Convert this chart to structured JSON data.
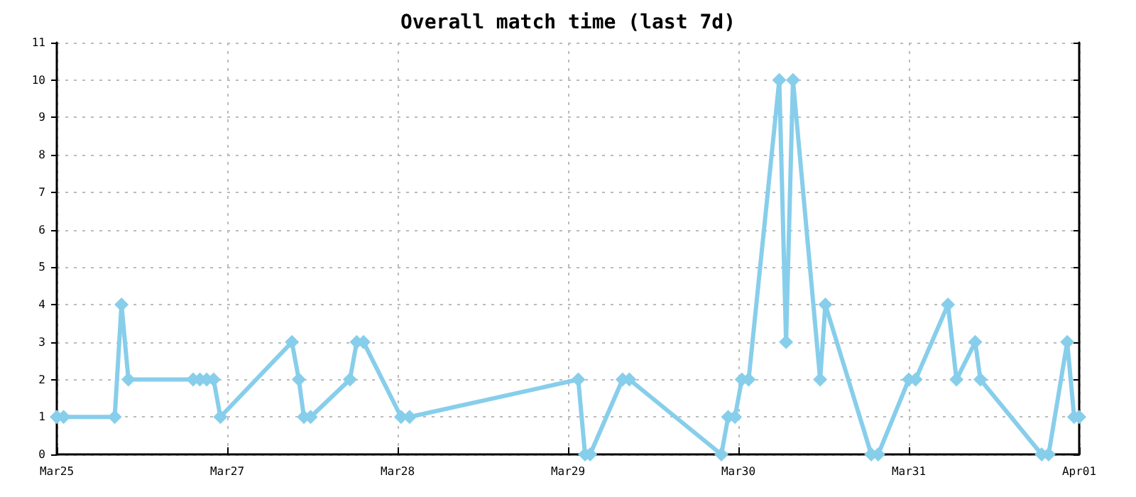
{
  "chart_data": {
    "type": "line",
    "title": "Overall match time (last 7d)",
    "x": [
      "--03-25T20:00",
      "--03-25T21:07",
      "--03-26T05:31",
      "--03-26T06:38",
      "--03-26T07:46",
      "--03-26T18:24",
      "--03-26T19:31",
      "--03-26T20:38",
      "--03-26T21:46",
      "--03-26T22:53",
      "--03-27T10:38",
      "--03-27T11:46",
      "--03-27T12:36",
      "--03-27T13:43",
      "--03-27T20:10",
      "--03-27T21:17",
      "--03-27T22:24",
      "--03-28T04:34",
      "--03-28T05:58",
      "--03-29T09:41",
      "--03-29T10:48",
      "--03-29T11:38",
      "--03-29T16:58",
      "--03-29T18:05",
      "--03-30T09:12",
      "--03-30T10:19",
      "--03-30T11:26",
      "--03-30T12:34",
      "--03-30T13:41",
      "--03-30T18:43",
      "--03-30T19:50",
      "--03-30T20:58",
      "--03-31T01:26",
      "--03-31T02:17",
      "--03-31T09:50",
      "--03-31T10:58",
      "--03-31T16:00",
      "--03-31T17:07",
      "--03-31T22:26",
      "--03-31T23:50",
      "--04-01T02:55",
      "--04-01T03:46",
      "--04-01T13:50",
      "--04-01T14:58",
      "--04-01T18:02",
      "--04-01T19:10",
      "--04-01T20:00"
    ],
    "series": [
      {
        "color": "#87ceeb",
        "values": [
          1,
          1,
          1,
          4,
          2,
          2,
          2,
          2,
          2,
          1,
          3,
          2,
          1,
          1,
          2,
          3,
          3,
          1,
          1,
          2,
          0,
          0,
          2,
          2,
          0,
          1,
          1,
          2,
          2,
          10,
          3,
          10,
          2,
          4,
          0,
          0,
          2,
          2,
          4,
          2,
          3,
          2,
          0,
          0,
          3,
          1,
          1
        ]
      }
    ],
    "xlim": [
      "--03-25T20:00",
      "--04-01T20:00"
    ],
    "xticks": [
      {
        "value": "--03-25T20:00",
        "label": "Mar25"
      },
      {
        "value": "--03-27T00:00",
        "label": "Mar27"
      },
      {
        "value": "--03-28T04:00",
        "label": "Mar28"
      },
      {
        "value": "--03-29T08:00",
        "label": "Mar29"
      },
      {
        "value": "--03-30T12:00",
        "label": "Mar30"
      },
      {
        "value": "--03-31T16:00",
        "label": "Mar31"
      },
      {
        "value": "--04-01T20:00",
        "label": "Apr01"
      }
    ],
    "ylim": [
      0,
      11
    ],
    "yticks": [
      0,
      1,
      2,
      3,
      4,
      5,
      6,
      7,
      8,
      9,
      10,
      11
    ],
    "grid": true,
    "marker": "diamond",
    "line_style": "solid"
  }
}
